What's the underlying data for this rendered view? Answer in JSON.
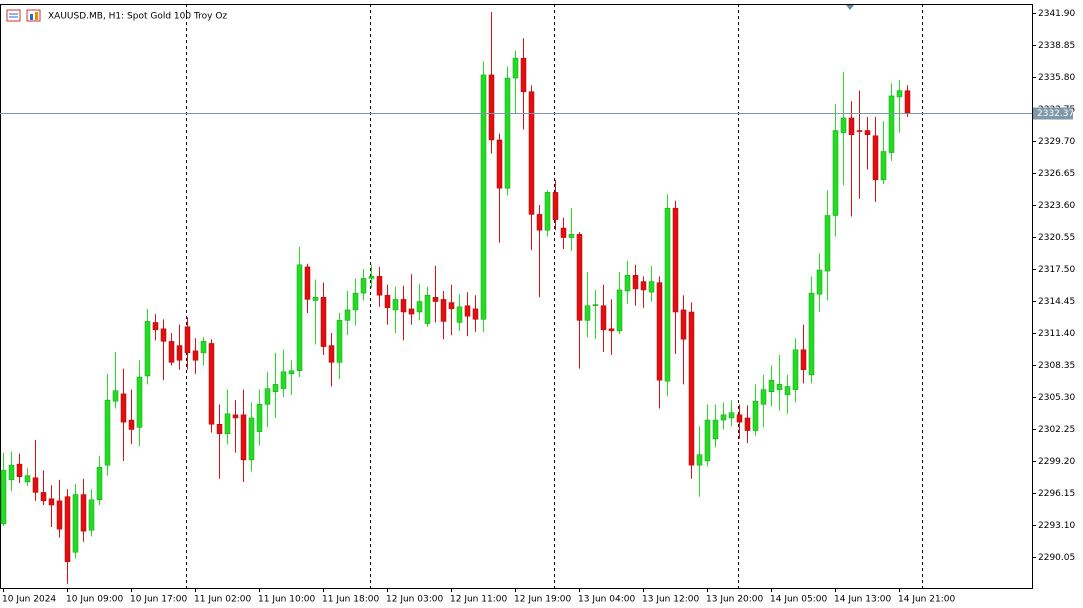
{
  "chart_data": {
    "type": "candlestick",
    "title": "XAUUSD.MB, H1:  Spot Gold 100 Troy Oz",
    "categories": [
      "10 Jun 2024",
      null,
      null,
      null,
      null,
      null,
      null,
      null,
      "10 Jun 09:00",
      null,
      null,
      null,
      null,
      null,
      null,
      null,
      "10 Jun 17:00",
      null,
      null,
      null,
      null,
      null,
      null,
      null,
      "11 Jun 02:00",
      null,
      null,
      null,
      null,
      null,
      null,
      null,
      "11 Jun 10:00",
      null,
      null,
      null,
      null,
      null,
      null,
      null,
      "11 Jun 18:00",
      null,
      null,
      null,
      null,
      null,
      null,
      null,
      "12 Jun 03:00",
      null,
      null,
      null,
      null,
      null,
      null,
      null,
      "12 Jun 11:00",
      null,
      null,
      null,
      null,
      null,
      null,
      null,
      "12 Jun 19:00",
      null,
      null,
      null,
      null,
      null,
      null,
      null,
      "13 Jun 04:00",
      null,
      null,
      null,
      null,
      null,
      null,
      null,
      "13 Jun 12:00",
      null,
      null,
      null,
      null,
      null,
      null,
      null,
      "13 Jun 20:00",
      null,
      null,
      null,
      null,
      null,
      null,
      null,
      "14 Jun 05:00",
      null,
      null,
      null,
      null,
      null,
      null,
      null,
      "14 Jun 13:00",
      null,
      null,
      null,
      null,
      null,
      null,
      null,
      "14 Jun 21:00",
      null
    ],
    "open": [
      2293.2,
      2297.4,
      2298.9,
      2297.2,
      2297.6,
      2296.2,
      2295.6,
      2295.4,
      2295.8,
      2290.5,
      2296.0,
      2292.6,
      2295.5,
      2298.8,
      2304.9,
      2305.6,
      2303.1,
      2302.4,
      2307.3,
      2312.4,
      2311.8,
      2310.6,
      2310.2,
      2312.0,
      2309.7,
      2309.5,
      2310.4,
      2302.7,
      2301.8,
      2303.6,
      2303.6,
      2299.3,
      2302.0,
      2304.6,
      2305.8,
      2306.1,
      2307.5,
      2307.8,
      2317.7,
      2314.5,
      2314.8,
      2310.2,
      2308.6,
      2312.6,
      2313.6,
      2315.2,
      2316.6,
      2316.8,
      2315.0,
      2313.6,
      2314.6,
      2313.7,
      2313.4,
      2312.3,
      2314.8,
      2314.6,
      2314.3,
      2312.4,
      2314.0,
      2313.7,
      2312.7,
      2336.0,
      2329.8,
      2325.2,
      2335.7,
      2337.6,
      2334.4,
      2322.7,
      2321.2,
      2324.8,
      2321.4,
      2320.5,
      2320.8,
      2312.6,
      2314.0,
      2314.0,
      2311.8,
      2311.6,
      2315.4,
      2316.9,
      2316.3,
      2315.3,
      2316.2,
      2306.8,
      2323.3,
      2313.6,
      2313.4,
      2298.8,
      2299.2,
      2301.3,
      2303.1,
      2303.3,
      2303.6,
      2303.3,
      2302.1,
      2304.6,
      2305.8,
      2306.0,
      2305.5,
      2306.0,
      2309.8,
      2307.4,
      2315.1,
      2317.3,
      2322.6,
      2330.5,
      2331.9,
      2330.7,
      2330.7,
      2330.2,
      2326.0,
      2328.6,
      2333.9,
      2334.5
    ],
    "high": [
      2300.0,
      2300.1,
      2299.9,
      2298.5,
      2301.2,
      2298.3,
      2296.9,
      2297.4,
      2296.5,
      2297.0,
      2297.5,
      2296.5,
      2299.7,
      2307.5,
      2309.6,
      2308.0,
      2306.0,
      2308.8,
      2313.7,
      2313.2,
      2312.7,
      2311.4,
      2312.2,
      2312.9,
      2310.9,
      2311.0,
      2310.8,
      2304.6,
      2306.0,
      2305.0,
      2306.0,
      2304.8,
      2306.0,
      2307.7,
      2309.5,
      2309.8,
      2308.8,
      2319.6,
      2318.0,
      2316.5,
      2316.2,
      2311.4,
      2313.3,
      2315.4,
      2316.6,
      2317.5,
      2317.9,
      2317.7,
      2316.0,
      2315.8,
      2315.9,
      2317.0,
      2316.1,
      2315.8,
      2317.8,
      2315.4,
      2316.0,
      2315.1,
      2315.3,
      2315.0,
      2337.3,
      2342.0,
      2330.4,
      2336.8,
      2338.3,
      2339.5,
      2335.0,
      2323.6,
      2325.0,
      2326.0,
      2322.4,
      2323.3,
      2321.0,
      2317.2,
      2315.5,
      2316.0,
      2314.6,
      2317.2,
      2318.3,
      2317.9,
      2316.8,
      2317.8,
      2316.8,
      2324.6,
      2324.0,
      2315.0,
      2314.3,
      2302.5,
      2304.6,
      2304.6,
      2304.8,
      2305.0,
      2304.6,
      2304.5,
      2306.5,
      2307.4,
      2308.3,
      2309.3,
      2307.4,
      2310.9,
      2312.2,
      2316.8,
      2319.0,
      2325.0,
      2333.2,
      2336.3,
      2333.5,
      2334.5,
      2332.0,
      2332.0,
      2331.6,
      2335.2,
      2335.5,
      2335.0
    ],
    "low": [
      2293.0,
      2296.3,
      2297.1,
      2296.8,
      2295.4,
      2295.0,
      2292.9,
      2291.9,
      2287.5,
      2289.9,
      2291.5,
      2292.0,
      2295.0,
      2297.8,
      2304.2,
      2299.2,
      2300.8,
      2300.6,
      2306.5,
      2310.7,
      2306.9,
      2308.3,
      2307.9,
      2307.9,
      2307.5,
      2308.3,
      2301.9,
      2297.5,
      2300.8,
      2300.0,
      2297.2,
      2298.2,
      2300.7,
      2302.4,
      2303.3,
      2305.3,
      2305.5,
      2307.2,
      2313.3,
      2310.3,
      2309.3,
      2306.3,
      2307.0,
      2311.2,
      2312.1,
      2314.5,
      2315.7,
      2313.9,
      2312.2,
      2311.4,
      2310.7,
      2312.2,
      2312.6,
      2312.0,
      2312.4,
      2310.8,
      2311.2,
      2311.6,
      2311.1,
      2311.5,
      2311.5,
      2328.5,
      2320.0,
      2324.5,
      2332.3,
      2330.8,
      2319.3,
      2314.8,
      2320.6,
      2321.2,
      2319.4,
      2319.2,
      2308.0,
      2311.0,
      2310.8,
      2309.6,
      2309.3,
      2311.3,
      2314.2,
      2314.0,
      2313.8,
      2314.4,
      2304.2,
      2305.4,
      2309.4,
      2306.5,
      2297.5,
      2295.8,
      2298.7,
      2300.5,
      2302.2,
      2302.5,
      2301.3,
      2300.9,
      2301.6,
      2302.4,
      2304.4,
      2304.0,
      2303.7,
      2304.8,
      2306.6,
      2306.6,
      2313.4,
      2314.5,
      2320.6,
      2325.5,
      2322.5,
      2324.2,
      2327.0,
      2323.9,
      2325.6,
      2327.8,
      2330.5,
      2332.0
    ],
    "close": [
      2298.3,
      2298.8,
      2297.7,
      2297.8,
      2296.2,
      2295.4,
      2295.0,
      2292.7,
      2289.6,
      2296.0,
      2292.5,
      2295.5,
      2298.6,
      2305.0,
      2305.9,
      2302.9,
      2302.2,
      2307.2,
      2312.5,
      2311.7,
      2310.6,
      2308.6,
      2308.8,
      2309.5,
      2308.8,
      2310.6,
      2302.7,
      2301.8,
      2303.7,
      2303.3,
      2299.3,
      2303.3,
      2304.6,
      2306.1,
      2306.5,
      2307.7,
      2307.8,
      2317.9,
      2314.6,
      2314.8,
      2310.1,
      2308.6,
      2312.6,
      2313.6,
      2315.2,
      2316.6,
      2316.8,
      2315.0,
      2313.8,
      2314.6,
      2313.4,
      2313.2,
      2314.4,
      2315.0,
      2314.4,
      2312.5,
      2313.7,
      2313.9,
      2313.0,
      2312.7,
      2336.0,
      2329.8,
      2325.2,
      2335.7,
      2337.6,
      2334.4,
      2322.7,
      2321.2,
      2324.8,
      2322.2,
      2320.5,
      2320.8,
      2312.6,
      2314.0,
      2314.1,
      2311.7,
      2311.6,
      2315.5,
      2316.9,
      2315.6,
      2315.5,
      2316.3,
      2306.9,
      2323.3,
      2313.4,
      2310.8,
      2298.8,
      2299.8,
      2303.1,
      2303.1,
      2303.6,
      2303.8,
      2302.9,
      2302.1,
      2304.9,
      2306.0,
      2306.9,
      2306.5,
      2306.3,
      2309.8,
      2307.9,
      2315.2,
      2317.4,
      2322.6,
      2330.7,
      2331.9,
      2330.3,
      2330.6,
      2330.3,
      2326.0,
      2328.7,
      2334.0,
      2334.5,
      2332.37
    ],
    "up_color": "#22dd22",
    "down_color": "#e01010",
    "current_price": 2332.37,
    "ylim": [
      2287.09,
      2342.76
    ],
    "yticks": [
      {
        "value": 2341.9,
        "label": "2341.90"
      },
      {
        "value": 2338.85,
        "label": "2338.85"
      },
      {
        "value": 2335.8,
        "label": "2335.80"
      },
      {
        "value": 2332.75,
        "label": "2332.75"
      },
      {
        "value": 2329.7,
        "label": "2329.70"
      },
      {
        "value": 2326.65,
        "label": "2326.65"
      },
      {
        "value": 2323.6,
        "label": "2323.60"
      },
      {
        "value": 2320.55,
        "label": "2320.55"
      },
      {
        "value": 2317.5,
        "label": "2317.50"
      },
      {
        "value": 2314.45,
        "label": "2314.45"
      },
      {
        "value": 2311.4,
        "label": "2311.40"
      },
      {
        "value": 2308.35,
        "label": "2308.35"
      },
      {
        "value": 2305.3,
        "label": "2305.30"
      },
      {
        "value": 2302.25,
        "label": "2302.25"
      },
      {
        "value": 2299.2,
        "label": "2299.20"
      },
      {
        "value": 2296.15,
        "label": "2296.15"
      },
      {
        "value": 2293.1,
        "label": "2293.10"
      },
      {
        "value": 2290.05,
        "label": "2290.05"
      }
    ]
  }
}
